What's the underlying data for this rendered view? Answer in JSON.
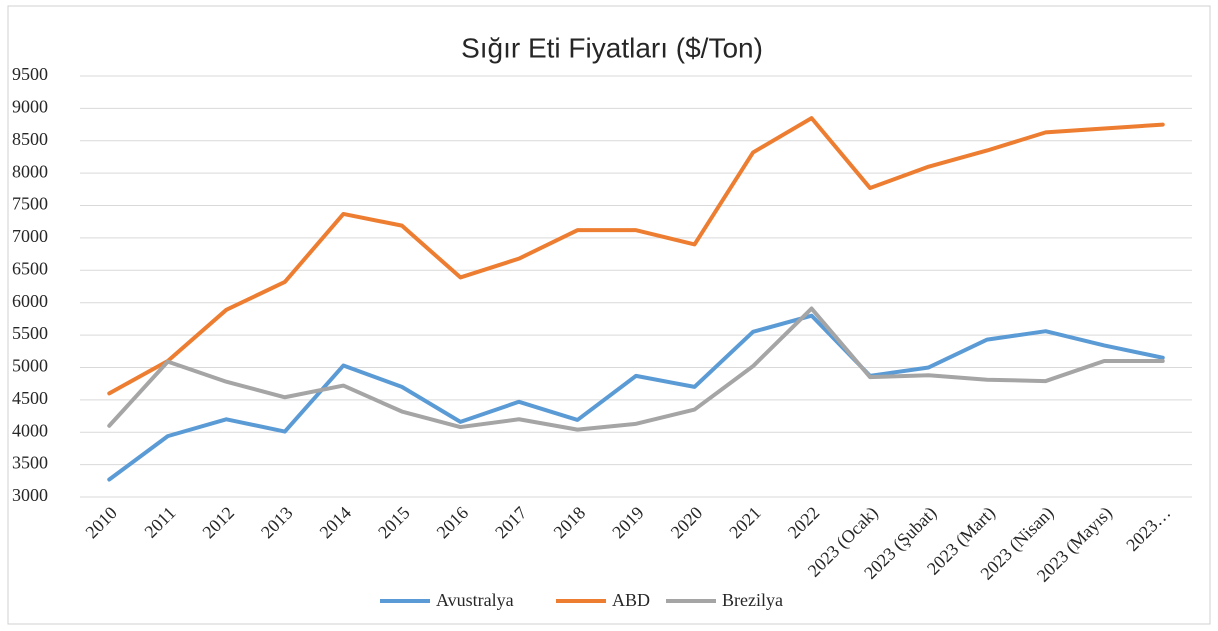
{
  "chart_data": {
    "type": "line",
    "title": "Sığır Eti Fiyatları ($/Ton)",
    "categories": [
      "2010",
      "2011",
      "2012",
      "2013",
      "2014",
      "2015",
      "2016",
      "2017",
      "2018",
      "2019",
      "2020",
      "2021",
      "2022",
      "2023 (Ocak)",
      "2023 (Şubat)",
      "2023 (Mart)",
      "2023 (Nisan)",
      "2023 (Mayıs)",
      "2023…"
    ],
    "series": [
      {
        "name": "Avustralya",
        "color": "#5b9bd5",
        "values": [
          3270,
          3940,
          4200,
          4010,
          5030,
          4700,
          4160,
          4470,
          4190,
          4870,
          4700,
          5550,
          5800,
          4870,
          5000,
          5430,
          5560,
          5340,
          5150
        ]
      },
      {
        "name": "ABD",
        "color": "#ed7d31",
        "values": [
          4600,
          5100,
          5890,
          6320,
          7370,
          7190,
          6390,
          6680,
          7120,
          7120,
          6900,
          8320,
          8850,
          7770,
          8100,
          8350,
          8630,
          8690,
          8750
        ]
      },
      {
        "name": "Brezilya",
        "color": "#a5a5a5",
        "values": [
          4100,
          5090,
          4780,
          4540,
          4720,
          4320,
          4080,
          4200,
          4040,
          4130,
          4350,
          5020,
          5910,
          4850,
          4880,
          4810,
          4790,
          5100,
          5100
        ]
      }
    ],
    "ylim": [
      3000,
      9500
    ],
    "yticks": [
      3000,
      3500,
      4000,
      4500,
      5000,
      5500,
      6000,
      6500,
      7000,
      7500,
      8000,
      8500,
      9000,
      9500
    ],
    "grid": true,
    "legend": "bottom"
  }
}
